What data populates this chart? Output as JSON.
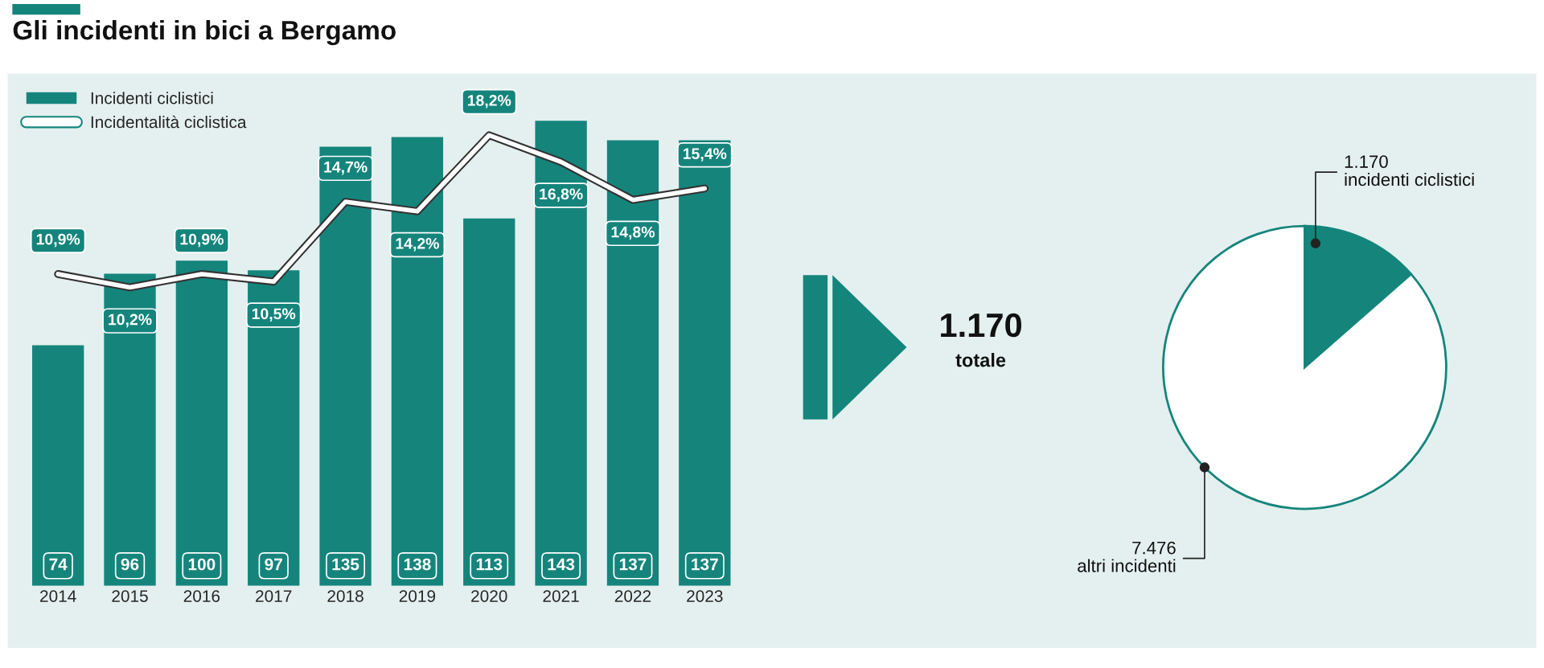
{
  "chart_data": [
    {
      "type": "bar",
      "title": "Gli incidenti in bici a Bergamo",
      "categories": [
        "2014",
        "2015",
        "2016",
        "2017",
        "2018",
        "2019",
        "2020",
        "2021",
        "2022",
        "2023"
      ],
      "series": [
        {
          "name": "Incidenti ciclistici",
          "type": "bar",
          "color": "#15857c",
          "values": [
            74,
            96,
            100,
            97,
            135,
            138,
            113,
            143,
            137,
            137
          ],
          "value_labels": [
            "74",
            "96",
            "100",
            "97",
            "135",
            "138",
            "113",
            "143",
            "137",
            "137"
          ]
        },
        {
          "name": "Incidentalità ciclistica",
          "type": "line",
          "axis": "y2",
          "color": "#ffffff",
          "values": [
            10.9,
            10.2,
            10.9,
            10.5,
            14.7,
            14.2,
            18.2,
            16.8,
            14.8,
            15.4
          ],
          "value_labels": [
            "10,9%",
            "10,2%",
            "10,9%",
            "10,5%",
            "14,7%",
            "14,2%",
            "18,2%",
            "16,8%",
            "14,8%",
            "15,4%"
          ]
        }
      ],
      "ylim": [
        0,
        152
      ],
      "y2lim": [
        -5.5,
        20.5
      ],
      "tick_labels": "x",
      "legend": "top left",
      "grid": false,
      "marker": "none"
    },
    {
      "type": "other",
      "annotations": [
        "1.170",
        "totale"
      ]
    },
    {
      "type": "pie",
      "categories": [
        "incidenti ciclistici",
        "altri incidenti"
      ],
      "values": [
        1170,
        7476
      ],
      "colors": [
        "#15857c",
        "#ffffff"
      ],
      "value_labels": [
        "1.170",
        "7.476"
      ]
    }
  ]
}
